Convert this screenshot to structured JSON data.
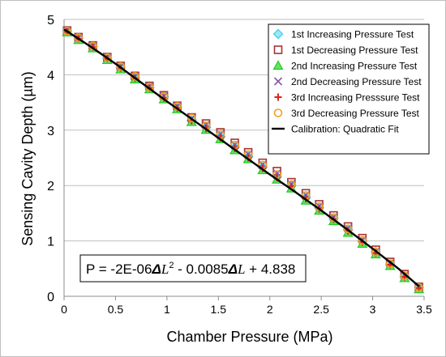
{
  "chart_data": {
    "type": "scatter",
    "xlabel": "Chamber Pressure (MPa)",
    "ylabel": "Sensing Cavity Depth (µm)",
    "xlim": [
      0,
      3.5
    ],
    "ylim": [
      0,
      5
    ],
    "xticks": [
      "0",
      "0.5",
      "1",
      "1.5",
      "2",
      "2.5",
      "3",
      "3.5"
    ],
    "yticks": [
      "0",
      "1",
      "2",
      "3",
      "4",
      "5"
    ],
    "grid": "horizontal",
    "legend_position": "top-right",
    "equation": {
      "prefix": "P = -2E-06",
      "delta": "Δ",
      "L1": "L",
      "sup": "2",
      "middle": " - 0.0085",
      "L2": "L",
      "suffix": " + 4.838"
    },
    "fit": {
      "name": "Calibration: Quadratic Fit",
      "color": "#000000",
      "x": [
        0.0,
        0.25,
        0.5,
        0.75,
        1.0,
        1.25,
        1.5,
        1.75,
        2.0,
        2.25,
        2.5,
        2.75,
        3.0,
        3.25,
        3.45
      ],
      "y": [
        4.82,
        4.52,
        4.2,
        3.86,
        3.52,
        3.19,
        2.86,
        2.53,
        2.2,
        1.88,
        1.55,
        1.21,
        0.86,
        0.5,
        0.18
      ]
    },
    "series": [
      {
        "name": "1st Increasing Pressure Test",
        "marker": "diamond",
        "color": "#33ccee",
        "x": [
          0.03,
          0.14,
          0.28,
          0.42,
          0.55,
          0.69,
          0.83,
          0.97,
          1.1,
          1.24,
          1.38,
          1.52,
          1.66,
          1.79,
          1.93,
          2.07,
          2.21,
          2.35,
          2.48,
          2.62,
          2.76,
          2.9,
          3.03,
          3.17,
          3.31,
          3.45
        ],
        "y": [
          4.79,
          4.66,
          4.51,
          4.3,
          4.13,
          3.95,
          3.77,
          3.6,
          3.42,
          3.18,
          3.05,
          2.88,
          2.69,
          2.52,
          2.33,
          2.16,
          2.0,
          1.78,
          1.6,
          1.41,
          1.2,
          1.0,
          0.8,
          0.58,
          0.36,
          0.16
        ]
      },
      {
        "name": "1st Decreasing Pressure Test",
        "marker": "square",
        "color": "#a83232",
        "x": [
          0.03,
          0.14,
          0.28,
          0.42,
          0.55,
          0.69,
          0.83,
          0.97,
          1.1,
          1.24,
          1.38,
          1.52,
          1.66,
          1.79,
          1.93,
          2.07,
          2.21,
          2.35,
          2.48,
          2.62,
          2.76,
          2.9,
          3.03,
          3.17,
          3.31,
          3.45
        ],
        "y": [
          4.8,
          4.68,
          4.53,
          4.32,
          4.16,
          3.98,
          3.8,
          3.63,
          3.44,
          3.23,
          3.12,
          2.96,
          2.77,
          2.6,
          2.41,
          2.26,
          2.06,
          1.86,
          1.66,
          1.46,
          1.26,
          1.05,
          0.84,
          0.62,
          0.4,
          0.17
        ]
      },
      {
        "name": "2nd Increasing Pressure Test",
        "marker": "triangle",
        "color": "#22cc22",
        "x": [
          0.03,
          0.14,
          0.28,
          0.42,
          0.55,
          0.69,
          0.83,
          0.97,
          1.1,
          1.24,
          1.38,
          1.52,
          1.66,
          1.79,
          1.93,
          2.07,
          2.21,
          2.35,
          2.48,
          2.62,
          2.76,
          2.9,
          3.03,
          3.17,
          3.31,
          3.45
        ],
        "y": [
          4.77,
          4.63,
          4.48,
          4.27,
          4.1,
          3.92,
          3.74,
          3.56,
          3.38,
          3.15,
          3.01,
          2.84,
          2.64,
          2.48,
          2.28,
          2.11,
          1.95,
          1.73,
          1.55,
          1.36,
          1.15,
          0.95,
          0.76,
          0.55,
          0.33,
          0.13
        ]
      },
      {
        "name": "2nd Decreasing Pressure Test",
        "marker": "x",
        "color": "#8a5fa8",
        "x": [
          0.03,
          0.14,
          0.28,
          0.42,
          0.55,
          0.69,
          0.83,
          0.97,
          1.1,
          1.24,
          1.38,
          1.52,
          1.66,
          1.79,
          1.93,
          2.07,
          2.21,
          2.35,
          2.48,
          2.62,
          2.76,
          2.9,
          3.03,
          3.17,
          3.31,
          3.45
        ],
        "y": [
          4.8,
          4.67,
          4.52,
          4.31,
          4.15,
          3.97,
          3.79,
          3.62,
          3.43,
          3.21,
          3.1,
          2.93,
          2.74,
          2.57,
          2.38,
          2.22,
          2.03,
          1.83,
          1.63,
          1.43,
          1.23,
          1.02,
          0.81,
          0.6,
          0.38,
          0.17
        ]
      },
      {
        "name": "3rd Increasing Presssure Test",
        "marker": "plus",
        "color": "#e02020",
        "x": [
          0.03,
          0.14,
          0.28,
          0.42,
          0.55,
          0.69,
          0.83,
          0.97,
          1.1,
          1.24,
          1.38,
          1.52,
          1.66,
          1.79,
          1.93,
          2.07,
          2.21,
          2.35,
          2.48,
          2.62,
          2.76,
          2.9,
          3.03,
          3.17,
          3.31,
          3.45
        ],
        "y": [
          4.78,
          4.65,
          4.5,
          4.29,
          4.12,
          3.94,
          3.76,
          3.58,
          3.4,
          3.17,
          3.03,
          2.86,
          2.67,
          2.5,
          2.31,
          2.14,
          1.98,
          1.76,
          1.58,
          1.39,
          1.18,
          0.98,
          0.78,
          0.57,
          0.35,
          0.15
        ]
      },
      {
        "name": "3rd Decreasing Pressure Test",
        "marker": "circle",
        "color": "#f0a020",
        "x": [
          0.03,
          0.14,
          0.28,
          0.42,
          0.55,
          0.69,
          0.83,
          0.97,
          1.1,
          1.24,
          1.38,
          1.52,
          1.66,
          1.79,
          1.93,
          2.07,
          2.21,
          2.35,
          2.48,
          2.62,
          2.76,
          2.9,
          3.03,
          3.17,
          3.31,
          3.45
        ],
        "y": [
          4.79,
          4.67,
          4.52,
          4.31,
          4.15,
          3.97,
          3.78,
          3.61,
          3.43,
          3.22,
          3.08,
          2.92,
          2.73,
          2.56,
          2.37,
          2.2,
          2.02,
          1.82,
          1.62,
          1.42,
          1.22,
          1.01,
          0.8,
          0.59,
          0.37,
          0.16
        ]
      }
    ]
  }
}
